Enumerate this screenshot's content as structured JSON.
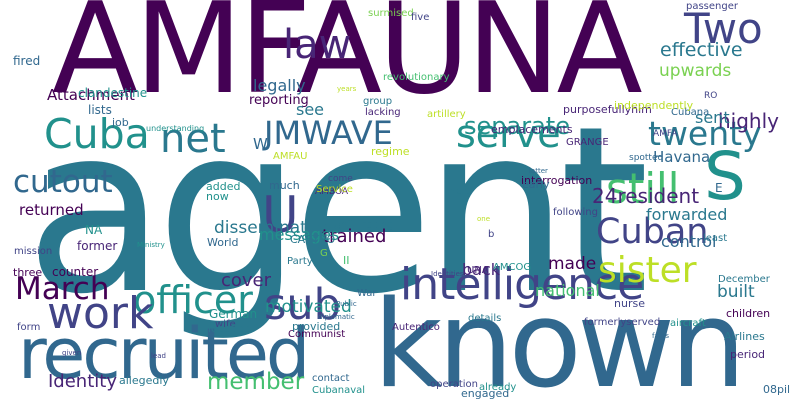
{
  "colors": {
    "purple": "#440154",
    "dark_purple": "#482576",
    "indigo": "#414487",
    "slate": "#31688e",
    "steel": "#2a788e",
    "teal": "#21918c",
    "sea": "#22a884",
    "green": "#44bf70",
    "lime": "#7ad151",
    "yellow_green": "#bddf26",
    "yellow": "#d8e219"
  },
  "words": [
    "AMFAUNA",
    "agent",
    "known",
    "recruited",
    "intelligence",
    "Cuba",
    "net",
    "serve",
    "S",
    "twenty",
    "still",
    "Cuban",
    "JMWAVE",
    "law",
    "Two",
    "officer",
    "cutout",
    "work",
    "March",
    "sub",
    "sister",
    "member",
    "Identity",
    "U",
    "effective",
    "upwards",
    "separate",
    "disseminations",
    "trained",
    "forwarded",
    "24resident",
    "control",
    "built",
    "cover",
    "motivated",
    "messages",
    "national",
    "back",
    "made",
    "highly",
    "sent",
    "Havana",
    "returned",
    "legally",
    "reporting",
    "see",
    "Attachment",
    "clandestine",
    "fired",
    "lists",
    "job",
    "mission",
    "NA",
    "former",
    "three",
    "counter",
    "German",
    "wife",
    "Party",
    "II",
    "AMCOG",
    "infiltrating",
    "AMBOA",
    "Service",
    "come",
    "CASTRO",
    "regime",
    "much",
    "now",
    "added",
    "World",
    "War",
    "Communist",
    "Autentico",
    "provided",
    "location",
    "form",
    "allegedly",
    "contact",
    "Cubanaval",
    "engaged",
    "already",
    "operation",
    "nurse",
    "children",
    "Airlines",
    "period",
    "08pilots",
    "aircraft",
    "December",
    "formerlyserved",
    "details",
    "UNA",
    "following",
    "least",
    "spotted",
    "AMFA",
    "Cubana",
    "RO",
    "GRANGE",
    "interrogation",
    "early",
    "held",
    "group",
    "lacking",
    "artillery",
    "emplacements",
    "purposefullyhim",
    "independently",
    "passenger",
    "surmised",
    "five",
    "revolutionary",
    "understanding",
    "diplomatic",
    "Public",
    "lead",
    "given",
    "Ministry",
    "one",
    "latter",
    "facts",
    "years",
    "Identities",
    "AMFAU",
    "b",
    "G",
    "W",
    "E"
  ]
}
